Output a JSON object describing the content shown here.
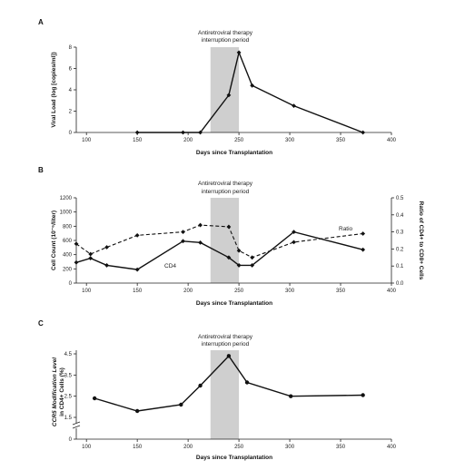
{
  "chart_data": [
    {
      "panel": "A",
      "type": "line",
      "annotation": [
        "Antiretroviral therapy",
        "interruption period"
      ],
      "shade": [
        222,
        250
      ],
      "xlabel": "Days since Transplantation",
      "ylabel": "Viral Load (log [copies/ml])",
      "xlim": [
        90,
        400
      ],
      "ylim": [
        0,
        8
      ],
      "xticks": [
        100,
        150,
        200,
        250,
        300,
        350,
        400
      ],
      "yticks": [
        0,
        2,
        4,
        6,
        8
      ],
      "series": [
        {
          "style": "solid",
          "marker": "diamond",
          "x": [
            150,
            195,
            212,
            240,
            250,
            263,
            304,
            372
          ],
          "y": [
            0,
            0,
            0,
            3.5,
            7.5,
            4.4,
            2.5,
            0
          ]
        }
      ]
    },
    {
      "panel": "B",
      "type": "line",
      "annotation": [
        "Antiretroviral therapy",
        "interruption period"
      ],
      "shade": [
        222,
        250
      ],
      "xlabel": "Days since Transplantation",
      "ylabel": "Cell Count (10⁻⁶/liter)",
      "ylabel_right": "Ratio of CD4+ to CD8+ Cells",
      "xlim": [
        90,
        400
      ],
      "ylim": [
        0,
        1200
      ],
      "ylim_right": [
        0,
        0.5
      ],
      "xticks": [
        100,
        150,
        200,
        250,
        300,
        350,
        400
      ],
      "yticks": [
        0,
        200,
        400,
        600,
        800,
        1000,
        1200
      ],
      "yticks_right": [
        "0.0",
        "0.1",
        "0.2",
        "0.3",
        "0.4",
        "0.5"
      ],
      "series": [
        {
          "name": "CD4",
          "style": "solid",
          "marker": "diamond",
          "axis": "left",
          "x": [
            90,
            104,
            120,
            150,
            195,
            212,
            240,
            250,
            263,
            304,
            372
          ],
          "y": [
            290,
            350,
            250,
            190,
            590,
            570,
            360,
            250,
            250,
            720,
            470
          ]
        },
        {
          "name": "Ratio",
          "style": "dashed",
          "marker": "diamond",
          "axis": "right",
          "x": [
            90,
            104,
            120,
            150,
            195,
            212,
            240,
            250,
            263,
            304,
            372
          ],
          "y": [
            0.23,
            0.17,
            0.21,
            0.28,
            0.3,
            0.34,
            0.33,
            0.19,
            0.15,
            0.24,
            0.29
          ]
        }
      ]
    },
    {
      "panel": "C",
      "type": "line",
      "annotation": [
        "Antiretroviral therapy",
        "interruption period"
      ],
      "shade": [
        222,
        250
      ],
      "xlabel": "Days since Transplantation",
      "ylabel": "CCR5 Modification Level in CD4+ Cells (%)",
      "xlim": [
        90,
        400
      ],
      "ylim": [
        1.5,
        4.5
      ],
      "axis_break": true,
      "xticks": [
        100,
        150,
        200,
        250,
        300,
        350,
        400
      ],
      "yticks": [
        "0",
        "1.5",
        "2.5",
        "3.5",
        "4.5"
      ],
      "series": [
        {
          "style": "solid",
          "marker": "dot",
          "x": [
            108,
            150,
            193,
            212,
            240,
            258,
            301,
            372
          ],
          "y": [
            2.4,
            1.8,
            2.1,
            3.0,
            4.4,
            3.15,
            2.5,
            2.55
          ]
        }
      ]
    }
  ]
}
